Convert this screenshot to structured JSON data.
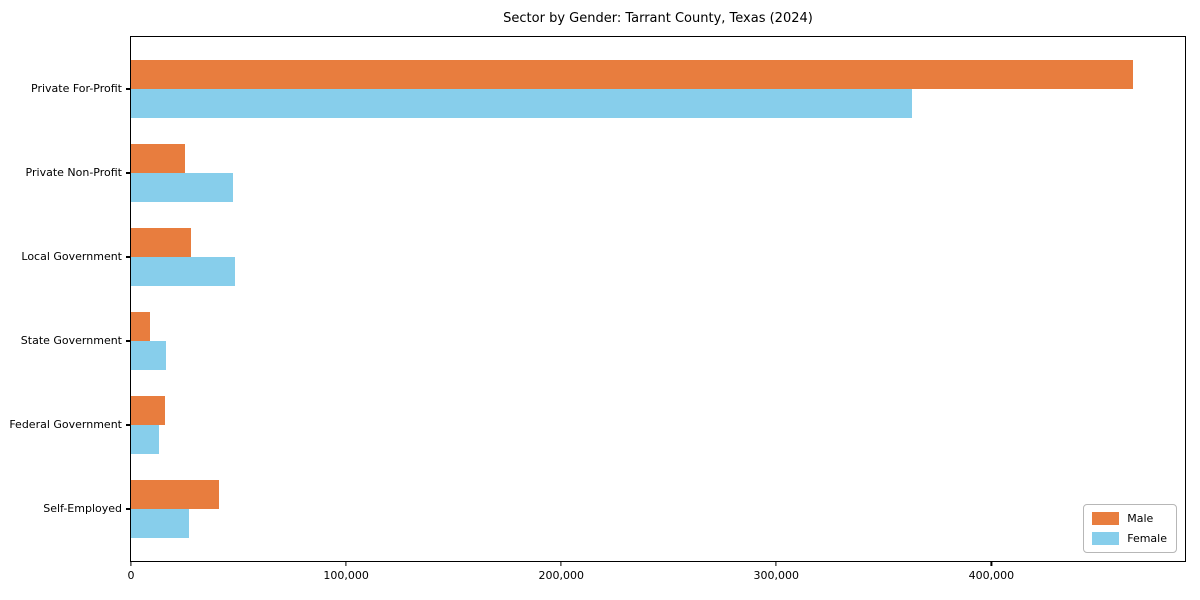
{
  "title": "Sector by Gender: Tarrant County, Texas (2024)",
  "chart_data": {
    "type": "bar",
    "orientation": "horizontal",
    "title": "Sector by Gender: Tarrant County, Texas (2024)",
    "categories": [
      "Private For-Profit",
      "Private Non-Profit",
      "Local Government",
      "State Government",
      "Federal Government",
      "Self-Employed"
    ],
    "series": [
      {
        "name": "Male",
        "color": "#e87d3e",
        "values": [
          466000,
          25000,
          28000,
          9000,
          16000,
          41000
        ]
      },
      {
        "name": "Female",
        "color": "#87ceeb",
        "values": [
          363000,
          47500,
          48500,
          16500,
          13000,
          27000
        ]
      }
    ],
    "xlabel": "",
    "ylabel": "",
    "xlim": [
      0,
      490000
    ],
    "xticks": [
      0,
      100000,
      200000,
      300000,
      400000
    ],
    "xtick_labels": [
      "0",
      "100,000",
      "200,000",
      "300,000",
      "400,000"
    ],
    "legend_position": "lower right",
    "grid": false,
    "spine_color": "#000000",
    "background_color": "#ffffff"
  }
}
